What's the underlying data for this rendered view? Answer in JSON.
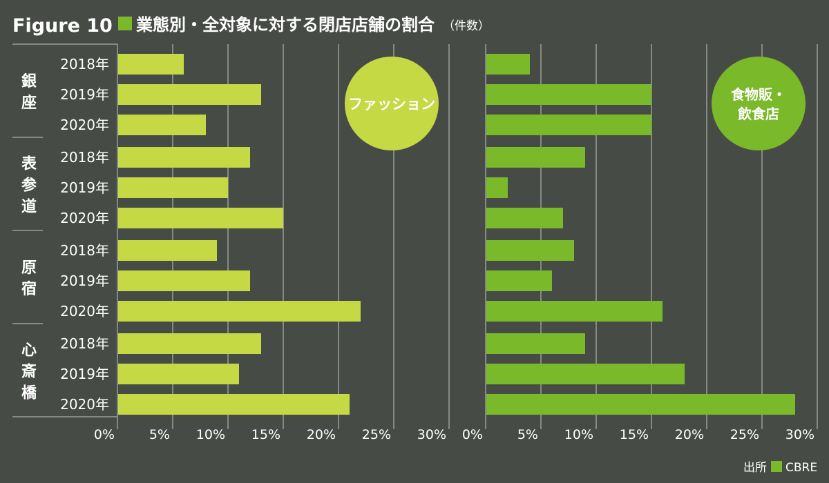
{
  "header": {
    "figure_label": "Figure 10",
    "title": "業態別・全対象に対する閉店店舗の割合",
    "title_suffix": "（件数）"
  },
  "source": {
    "label": "出所",
    "name": "CBRE"
  },
  "colors": {
    "background": "#464c45",
    "fashion_bar": "#c5d944",
    "food_bar": "#7ab92a",
    "header_square": "#7ab92a",
    "grid": "#9aa098",
    "text": "#ffffff"
  },
  "chart_data": [
    {
      "type": "bar",
      "orientation": "horizontal",
      "panel_label": "ファッション",
      "xlim": [
        0,
        30
      ],
      "xticks": [
        "0%",
        "5%",
        "10%",
        "15%",
        "20%",
        "25%",
        "30%"
      ],
      "groups": [
        {
          "name": "銀座",
          "categories": [
            "2018年",
            "2019年",
            "2020年"
          ],
          "values": [
            6,
            13,
            8
          ]
        },
        {
          "name": "表参道",
          "categories": [
            "2018年",
            "2019年",
            "2020年"
          ],
          "values": [
            12,
            10,
            15
          ]
        },
        {
          "name": "原宿",
          "categories": [
            "2018年",
            "2019年",
            "2020年"
          ],
          "values": [
            9,
            12,
            22
          ]
        },
        {
          "name": "心斎橋",
          "categories": [
            "2018年",
            "2019年",
            "2020年"
          ],
          "values": [
            13,
            11,
            21
          ]
        }
      ]
    },
    {
      "type": "bar",
      "orientation": "horizontal",
      "panel_label_lines": [
        "食物販・",
        "飲食店"
      ],
      "xlim": [
        0,
        30
      ],
      "xticks": [
        "0%",
        "5%",
        "10%",
        "15%",
        "20%",
        "25%",
        "30%"
      ],
      "groups": [
        {
          "name": "銀座",
          "categories": [
            "2018年",
            "2019年",
            "2020年"
          ],
          "values": [
            4,
            15,
            15
          ]
        },
        {
          "name": "表参道",
          "categories": [
            "2018年",
            "2019年",
            "2020年"
          ],
          "values": [
            9,
            2,
            7
          ]
        },
        {
          "name": "原宿",
          "categories": [
            "2018年",
            "2019年",
            "2020年"
          ],
          "values": [
            8,
            6,
            16
          ]
        },
        {
          "name": "心斎橋",
          "categories": [
            "2018年",
            "2019年",
            "2020年"
          ],
          "values": [
            9,
            18,
            28
          ]
        }
      ]
    }
  ]
}
